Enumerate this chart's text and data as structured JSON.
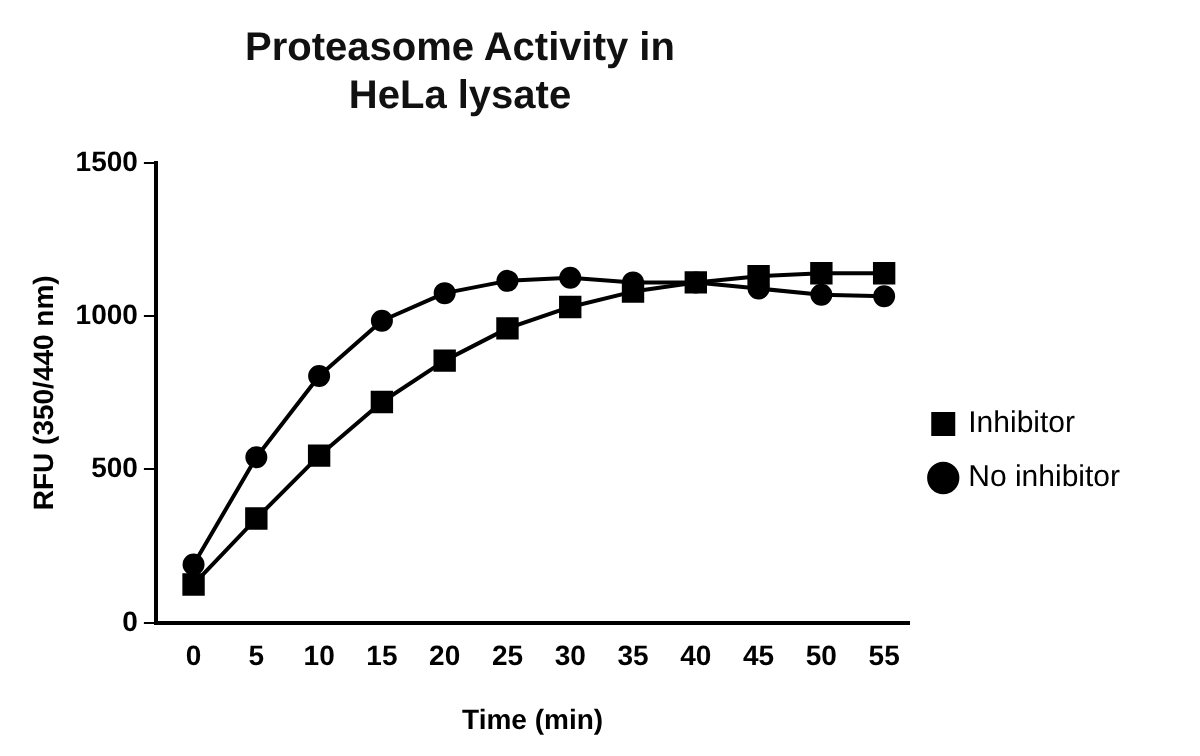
{
  "chart_data": {
    "type": "line",
    "title": "Proteasome Activity in HeLa lysate",
    "xlabel": "Time (min)",
    "ylabel": "RFU (350/440 nm)",
    "x": [
      0,
      5,
      10,
      15,
      20,
      25,
      30,
      35,
      40,
      45,
      50,
      55
    ],
    "series": [
      {
        "name": "Inhibitor",
        "color": "#000000",
        "marker": "square",
        "values": [
          125,
          340,
          545,
          720,
          855,
          960,
          1030,
          1080,
          1110,
          1130,
          1140,
          1140
        ]
      },
      {
        "name": "No inhibitor",
        "color": "#000000",
        "marker": "circle",
        "values": [
          190,
          540,
          805,
          985,
          1075,
          1115,
          1125,
          1110,
          1110,
          1090,
          1070,
          1065
        ]
      }
    ],
    "xlim": [
      -3,
      57
    ],
    "xticks": [
      0,
      5,
      10,
      15,
      20,
      25,
      30,
      35,
      40,
      45,
      50,
      55
    ],
    "ylim": [
      0,
      1500
    ],
    "yticks": [
      0,
      500,
      1000,
      1500
    ],
    "grid": false,
    "legend": "right",
    "line_style": "solid"
  }
}
